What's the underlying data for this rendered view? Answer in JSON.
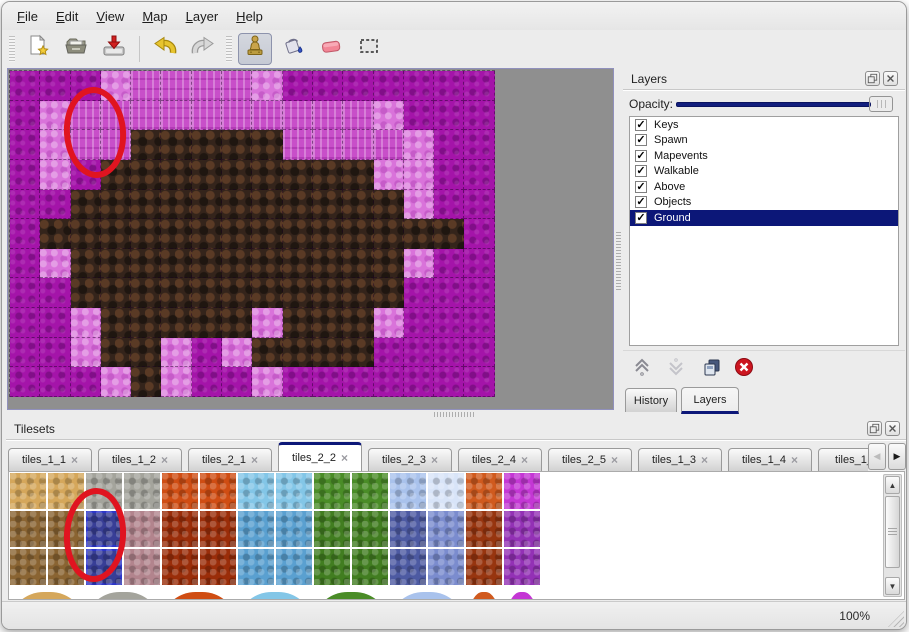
{
  "menubar": {
    "items": [
      {
        "label": "File"
      },
      {
        "label": "Edit"
      },
      {
        "label": "View"
      },
      {
        "label": "Map"
      },
      {
        "label": "Layer"
      },
      {
        "label": "Help"
      }
    ]
  },
  "toolbar": {
    "buttons": [
      {
        "name": "new-file",
        "icon": "new-file-icon",
        "selected": false
      },
      {
        "name": "open-file",
        "icon": "open-folder-icon",
        "selected": false
      },
      {
        "name": "save-file",
        "icon": "save-icon",
        "selected": false
      },
      {
        "name": "undo",
        "icon": "undo-icon",
        "selected": false
      },
      {
        "name": "redo",
        "icon": "redo-icon",
        "selected": false
      },
      {
        "name": "stamp-tool",
        "icon": "stamp-icon",
        "selected": true
      },
      {
        "name": "fill-tool",
        "icon": "fill-bucket-icon",
        "selected": false
      },
      {
        "name": "eraser-tool",
        "icon": "eraser-icon",
        "selected": false
      },
      {
        "name": "select-tool",
        "icon": "selection-icon",
        "selected": false
      }
    ]
  },
  "map_view": {
    "tile_colors": {
      "m": "#a414a9",
      "p": "#d973da",
      "k": "#c84fc9",
      "b": "#34241b"
    },
    "grid": [
      "mmmpkkkkpmmmmmmm",
      "mpkkkkkkkkkkpmmm",
      "mpkkbbbbbkkkkpmm",
      "mpmbbbbbbbbbppmm",
      "mmbbbbbbbbbbbpmm",
      "mbbbbbbbbbbbbbbm",
      "mpbbbbbbbbbbbpmm",
      "mmbbbbbbbbbbbmmm",
      "mmpbbbbbpbbbpmmm",
      "mmpbbpmpbbbbmmmm",
      "mmmpbpmmpmmmmmmm"
    ],
    "annotation_color": "#e01420"
  },
  "layers_panel": {
    "title": "Layers",
    "opacity_label": "Opacity:",
    "layers": [
      {
        "name": "Keys",
        "checked": true,
        "selected": false
      },
      {
        "name": "Spawn",
        "checked": true,
        "selected": false
      },
      {
        "name": "Mapevents",
        "checked": true,
        "selected": false
      },
      {
        "name": "Walkable",
        "checked": true,
        "selected": false
      },
      {
        "name": "Above",
        "checked": true,
        "selected": false
      },
      {
        "name": "Objects",
        "checked": true,
        "selected": false
      },
      {
        "name": "Ground",
        "checked": true,
        "selected": true
      }
    ],
    "tabs": [
      {
        "label": "History",
        "active": false
      },
      {
        "label": "Layers",
        "active": true
      }
    ]
  },
  "tilesets_panel": {
    "title": "Tilesets",
    "tabs": [
      {
        "label": "tiles_1_1",
        "active": false
      },
      {
        "label": "tiles_1_2",
        "active": false
      },
      {
        "label": "tiles_2_1",
        "active": false
      },
      {
        "label": "tiles_2_2",
        "active": true
      },
      {
        "label": "tiles_2_3",
        "active": false
      },
      {
        "label": "tiles_2_4",
        "active": false
      },
      {
        "label": "tiles_2_5",
        "active": false
      },
      {
        "label": "tiles_1_3",
        "active": false
      },
      {
        "label": "tiles_1_4",
        "active": false
      },
      {
        "label": "tiles_1_",
        "active": false
      }
    ],
    "palette": {
      "tan": "#d5a75b",
      "gray": "#a4a49c",
      "lava": "#cf4d13",
      "ltblue": "#83c6e7",
      "green": "#4a8c27",
      "ice": "#a9c2ec",
      "ice2": "#d8e4f8",
      "coral": "#d05a1e",
      "magweb": "#c437d4",
      "bark": "#8a6432",
      "sel": "#383e96",
      "mauve": "#b2848d",
      "flame": "#9a2d09",
      "icicle": "#5aa0d0",
      "green2": "#417d20",
      "crystal": "#4d5aa2",
      "crystal2": "#7b8cce",
      "rust": "#97350f",
      "purple": "#9331b5"
    },
    "grid": [
      [
        "tan",
        "tan",
        "gray",
        "gray",
        "lava",
        "lava",
        "ltblue",
        "ltblue",
        "green",
        "green",
        "ice",
        "ice2",
        "coral",
        "magweb"
      ],
      [
        "bark",
        "bark",
        "sel",
        "mauve",
        "flame",
        "flame",
        "icicle",
        "icicle",
        "green2",
        "green2",
        "crystal",
        "crystal2",
        "rust",
        "purple"
      ],
      [
        "bark",
        "bark",
        "sel",
        "mauve",
        "flame",
        "flame",
        "icicle",
        "icicle",
        "green2",
        "green2",
        "crystal",
        "crystal2",
        "rust",
        "purple"
      ]
    ],
    "selected_cells": [
      [
        1,
        2
      ],
      [
        2,
        2
      ]
    ],
    "blobs": [
      {
        "color": "tan",
        "unit": 0,
        "span": 2
      },
      {
        "color": "gray",
        "unit": 2,
        "span": 2
      },
      {
        "color": "lava",
        "unit": 4,
        "span": 2
      },
      {
        "color": "ltblue",
        "unit": 6,
        "span": 2
      },
      {
        "color": "green",
        "unit": 8,
        "span": 2
      },
      {
        "color": "ice",
        "unit": 10,
        "span": 2
      },
      {
        "color": "coral",
        "unit": 12,
        "span": 1
      },
      {
        "color": "magweb",
        "unit": 13,
        "span": 1
      }
    ],
    "annotation_color": "#e01420"
  },
  "statusbar": {
    "zoom_level": "100%"
  }
}
